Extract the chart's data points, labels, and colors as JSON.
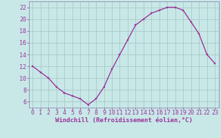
{
  "x": [
    0,
    1,
    2,
    3,
    4,
    5,
    6,
    7,
    8,
    9,
    10,
    11,
    12,
    13,
    14,
    15,
    16,
    17,
    18,
    19,
    20,
    21,
    22,
    23
  ],
  "y": [
    12,
    11,
    10,
    8.5,
    7.5,
    7,
    6.5,
    5.5,
    6.5,
    8.5,
    11.5,
    14,
    16.5,
    19,
    20,
    21,
    21.5,
    22,
    22,
    21.5,
    19.5,
    17.5,
    14,
    12.5
  ],
  "line_color": "#993399",
  "marker_color": "#993399",
  "bg_color": "#c8e8e8",
  "grid_color": "#a8c8c8",
  "axis_color": "#993399",
  "label_color": "#993399",
  "xlabel": "Windchill (Refroidissement éolien,°C)",
  "xlim_min": -0.5,
  "xlim_max": 23.5,
  "ylim_min": 5,
  "ylim_max": 23,
  "yticks": [
    6,
    8,
    10,
    12,
    14,
    16,
    18,
    20,
    22
  ],
  "xticks": [
    0,
    1,
    2,
    3,
    4,
    5,
    6,
    7,
    8,
    9,
    10,
    11,
    12,
    13,
    14,
    15,
    16,
    17,
    18,
    19,
    20,
    21,
    22,
    23
  ],
  "spine_color": "#8888aa",
  "tick_fontsize": 6,
  "xlabel_fontsize": 6.5
}
